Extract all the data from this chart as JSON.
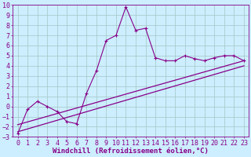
{
  "xlabel": "Windchill (Refroidissement éolien,°C)",
  "xlim": [
    -0.5,
    23.5
  ],
  "ylim": [
    -3,
    10
  ],
  "xticks": [
    0,
    1,
    2,
    3,
    4,
    5,
    6,
    7,
    8,
    9,
    10,
    11,
    12,
    13,
    14,
    15,
    16,
    17,
    18,
    19,
    20,
    21,
    22,
    23
  ],
  "yticks": [
    -3,
    -2,
    -1,
    0,
    1,
    2,
    3,
    4,
    5,
    6,
    7,
    8,
    9,
    10
  ],
  "background_color": "#cceeff",
  "grid_color": "#aacccc",
  "line_color": "#880088",
  "line1_x": [
    0,
    1,
    2,
    3,
    4,
    5,
    6,
    7,
    8,
    9,
    10,
    11,
    12,
    13,
    14,
    15,
    16,
    17,
    18,
    19,
    20,
    21,
    22,
    23
  ],
  "line1_y": [
    -2.7,
    -0.3,
    0.5,
    -0.0,
    -0.5,
    -1.5,
    -1.7,
    1.3,
    3.5,
    6.5,
    7.0,
    9.8,
    7.5,
    7.7,
    4.8,
    4.5,
    4.5,
    5.0,
    4.7,
    4.5,
    4.8,
    5.0,
    5.0,
    4.5
  ],
  "line2_x": [
    0,
    23
  ],
  "line2_y": [
    -1.8,
    4.5
  ],
  "line3_x": [
    0,
    23
  ],
  "line3_y": [
    -2.5,
    4.0
  ],
  "tick_fontsize": 6,
  "xlabel_fontsize": 6.5
}
